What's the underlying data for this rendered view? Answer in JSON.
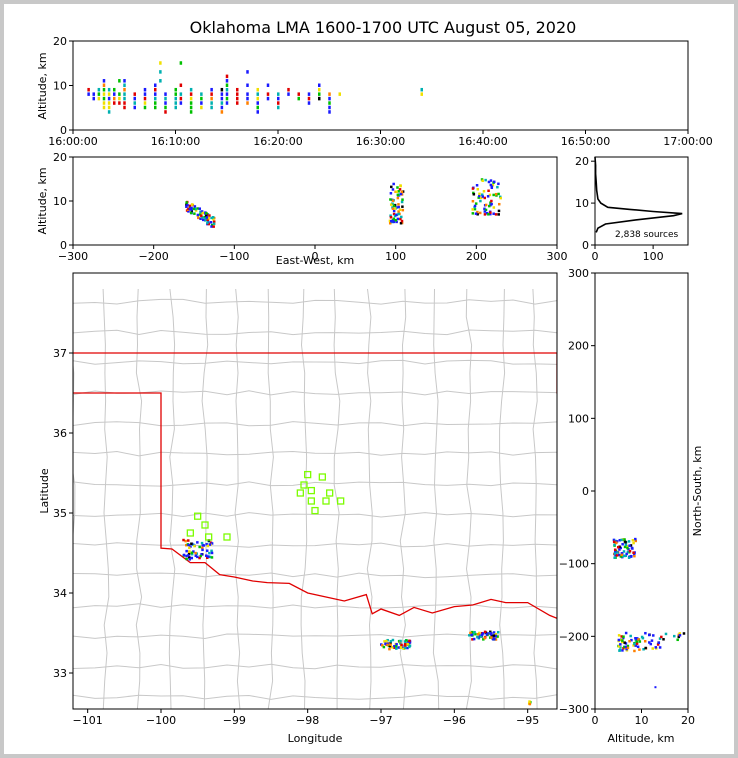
{
  "title": "Oklahoma LMA 1600-1700 UTC August 05, 2020",
  "colors": {
    "state_line": "#e00000",
    "county_line": "#c8c8c8",
    "station": "#7cfc00",
    "density": [
      "#1a1aff",
      "#00b0b0",
      "#00c000",
      "#f0e000",
      "#ff8000",
      "#e00000",
      "#000000"
    ]
  },
  "chart_data": [
    {
      "name": "time-height",
      "type": "scatter",
      "ylabel": "Altitude, km",
      "xlim": [
        "16:00:00",
        "17:00:00"
      ],
      "ylim": [
        0,
        20
      ],
      "xticks": [
        "16:00:00",
        "16:10:00",
        "16:20:00",
        "16:30:00",
        "16:40:00",
        "16:50:00",
        "17:00:00"
      ],
      "yticks": [
        "0",
        "10",
        "20"
      ],
      "columns": [
        {
          "t": "16:01:30",
          "alt": [
            8,
            9
          ]
        },
        {
          "t": "16:02:00",
          "alt": [
            7,
            8
          ]
        },
        {
          "t": "16:02:30",
          "alt": [
            7,
            8,
            9
          ]
        },
        {
          "t": "16:03:00",
          "alt": [
            5,
            6,
            7,
            8,
            9,
            10,
            11
          ]
        },
        {
          "t": "16:03:30",
          "alt": [
            4,
            5,
            6,
            7,
            8,
            9
          ]
        },
        {
          "t": "16:04:00",
          "alt": [
            6,
            7,
            8,
            9
          ]
        },
        {
          "t": "16:04:30",
          "alt": [
            6,
            7,
            8,
            11
          ]
        },
        {
          "t": "16:05:00",
          "alt": [
            5,
            6,
            7,
            8,
            9,
            10,
            11
          ]
        },
        {
          "t": "16:06:00",
          "alt": [
            5,
            6,
            7,
            8
          ]
        },
        {
          "t": "16:07:00",
          "alt": [
            5,
            6,
            7,
            8,
            9
          ]
        },
        {
          "t": "16:08:00",
          "alt": [
            5,
            6,
            7,
            8,
            9,
            10
          ]
        },
        {
          "t": "16:08:30",
          "alt": [
            11,
            13,
            15
          ]
        },
        {
          "t": "16:09:00",
          "alt": [
            4,
            5,
            6,
            7,
            8
          ]
        },
        {
          "t": "16:10:00",
          "alt": [
            5,
            6,
            7,
            8,
            9
          ]
        },
        {
          "t": "16:10:30",
          "alt": [
            6,
            7,
            8,
            10,
            15
          ]
        },
        {
          "t": "16:11:30",
          "alt": [
            4,
            5,
            6,
            7,
            8,
            9
          ]
        },
        {
          "t": "16:12:30",
          "alt": [
            5,
            6,
            7,
            8
          ]
        },
        {
          "t": "16:13:30",
          "alt": [
            5,
            6,
            7,
            8,
            9
          ]
        },
        {
          "t": "16:14:30",
          "alt": [
            4,
            5,
            6,
            7,
            8,
            9
          ]
        },
        {
          "t": "16:15:00",
          "alt": [
            6,
            7,
            8,
            9,
            10,
            11,
            12
          ]
        },
        {
          "t": "16:16:00",
          "alt": [
            6,
            7,
            8,
            9
          ]
        },
        {
          "t": "16:17:00",
          "alt": [
            6,
            7,
            8,
            10,
            13
          ]
        },
        {
          "t": "16:18:00",
          "alt": [
            4,
            5,
            6,
            7,
            8,
            9
          ]
        },
        {
          "t": "16:19:00",
          "alt": [
            7,
            8,
            10
          ]
        },
        {
          "t": "16:20:00",
          "alt": [
            5,
            6,
            7,
            8
          ]
        },
        {
          "t": "16:21:00",
          "alt": [
            8,
            9
          ]
        },
        {
          "t": "16:22:00",
          "alt": [
            7,
            8
          ]
        },
        {
          "t": "16:23:00",
          "alt": [
            6,
            7,
            8
          ]
        },
        {
          "t": "16:24:00",
          "alt": [
            7,
            8,
            9,
            10
          ]
        },
        {
          "t": "16:25:00",
          "alt": [
            4,
            5,
            6,
            7,
            8
          ]
        },
        {
          "t": "16:26:00",
          "alt": [
            8
          ]
        },
        {
          "t": "16:34:00",
          "alt": [
            8,
            9
          ]
        }
      ]
    },
    {
      "name": "east-west-altitude",
      "type": "scatter",
      "xlabel": "East-West, km",
      "ylabel": "Altitude, km",
      "xlim": [
        -300,
        300
      ],
      "ylim": [
        0,
        20
      ],
      "xticks": [
        "−300",
        "−200",
        "−100",
        "0",
        "100",
        "200",
        "300"
      ],
      "yticks": [
        "0",
        "10",
        "20"
      ],
      "clusters": [
        {
          "x": [
            -160,
            -125
          ],
          "alt": [
            4,
            9
          ]
        },
        {
          "x": [
            92,
            110
          ],
          "alt": [
            5,
            14
          ]
        },
        {
          "x": [
            195,
            230
          ],
          "alt": [
            7,
            15
          ]
        }
      ]
    },
    {
      "name": "altitude-histogram",
      "type": "line",
      "xlim": [
        0,
        160
      ],
      "ylim": [
        0,
        21
      ],
      "xticks": [
        "0",
        "100"
      ],
      "yticks": [
        "0",
        "10",
        "20"
      ],
      "annotation": "2,838 sources",
      "profile": [
        {
          "alt": 3,
          "count": 2
        },
        {
          "alt": 4,
          "count": 5
        },
        {
          "alt": 5,
          "count": 18
        },
        {
          "alt": 6,
          "count": 70
        },
        {
          "alt": 7,
          "count": 135
        },
        {
          "alt": 7.5,
          "count": 150
        },
        {
          "alt": 8,
          "count": 100
        },
        {
          "alt": 8.5,
          "count": 60
        },
        {
          "alt": 9,
          "count": 22
        },
        {
          "alt": 10,
          "count": 10
        },
        {
          "alt": 11,
          "count": 5
        },
        {
          "alt": 13,
          "count": 3
        },
        {
          "alt": 15,
          "count": 2
        },
        {
          "alt": 17,
          "count": 1
        },
        {
          "alt": 19,
          "count": 1
        },
        {
          "alt": 21,
          "count": 0
        }
      ]
    },
    {
      "name": "plan-view",
      "type": "scatter",
      "xlabel": "Longitude",
      "ylabel": "Latitude",
      "xlim": [
        -101.2,
        -94.6
      ],
      "ylim": [
        32.55,
        38.0
      ],
      "xticks": [
        "−101",
        "−100",
        "−99",
        "−98",
        "−97",
        "−96",
        "−95"
      ],
      "yticks": [
        "33",
        "34",
        "35",
        "36",
        "37"
      ],
      "stations": [
        {
          "lon": -99.5,
          "lat": 34.96
        },
        {
          "lon": -99.4,
          "lat": 34.85
        },
        {
          "lon": -99.6,
          "lat": 34.75
        },
        {
          "lon": -99.35,
          "lat": 34.7
        },
        {
          "lon": -99.1,
          "lat": 34.7
        },
        {
          "lon": -98.0,
          "lat": 35.48
        },
        {
          "lon": -98.05,
          "lat": 35.35
        },
        {
          "lon": -98.1,
          "lat": 35.25
        },
        {
          "lon": -97.95,
          "lat": 35.28
        },
        {
          "lon": -97.8,
          "lat": 35.45
        },
        {
          "lon": -97.7,
          "lat": 35.25
        },
        {
          "lon": -97.75,
          "lat": 35.15
        },
        {
          "lon": -97.55,
          "lat": 35.15
        },
        {
          "lon": -97.95,
          "lat": 35.15
        },
        {
          "lon": -97.9,
          "lat": 35.03
        }
      ],
      "clusters": [
        {
          "lon": [
            -99.7,
            -99.3
          ],
          "lat": [
            34.42,
            34.67
          ]
        },
        {
          "lon": [
            -97.0,
            -96.6
          ],
          "lat": [
            33.3,
            33.42
          ]
        },
        {
          "lon": [
            -95.8,
            -95.4
          ],
          "lat": [
            33.42,
            33.52
          ]
        },
        {
          "lon": [
            -95.05,
            -94.95
          ],
          "lat": [
            32.6,
            32.65
          ]
        }
      ]
    },
    {
      "name": "altitude-north-south",
      "type": "scatter",
      "xlabel": "Altitude, km",
      "ylabel": "North-South, km",
      "xlim": [
        0,
        20
      ],
      "ylim": [
        -300,
        300
      ],
      "xticks": [
        "0",
        "10",
        "20"
      ],
      "yticks": [
        "−300",
        "−200",
        "−100",
        "0",
        "100",
        "200",
        "300"
      ],
      "clusters": [
        {
          "alt": [
            4,
            9
          ],
          "ns": [
            -92,
            -65
          ]
        },
        {
          "alt": [
            5,
            14
          ],
          "ns": [
            -220,
            -195
          ]
        },
        {
          "alt": [
            14,
            20
          ],
          "ns": [
            -205,
            -195
          ]
        }
      ]
    }
  ]
}
